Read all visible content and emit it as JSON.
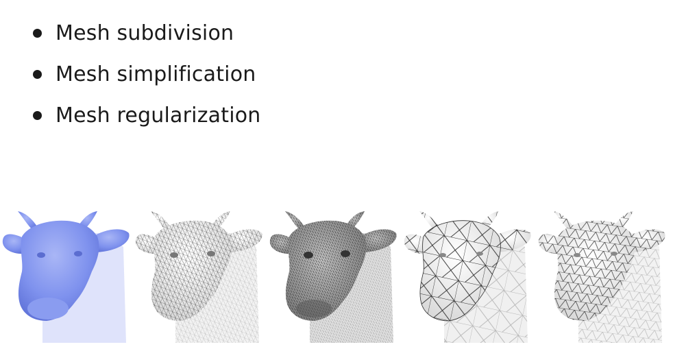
{
  "bullets": [
    {
      "label": "Mesh subdivision"
    },
    {
      "label": "Mesh simplification"
    },
    {
      "label": "Mesh regularization"
    }
  ],
  "colors": {
    "smooth_shaded": "#7f92ee",
    "wireframe_stroke": "#2b2b2b",
    "surface_light": "#f2f2f2",
    "surface_dark": "#8a8a8a"
  },
  "meshes": [
    {
      "icon": "cow-smooth-shaded-icon"
    },
    {
      "icon": "cow-subdivided-wireframe-icon"
    },
    {
      "icon": "cow-dense-dark-wireframe-icon"
    },
    {
      "icon": "cow-simplified-wireframe-icon"
    },
    {
      "icon": "cow-regularized-wireframe-icon"
    }
  ]
}
